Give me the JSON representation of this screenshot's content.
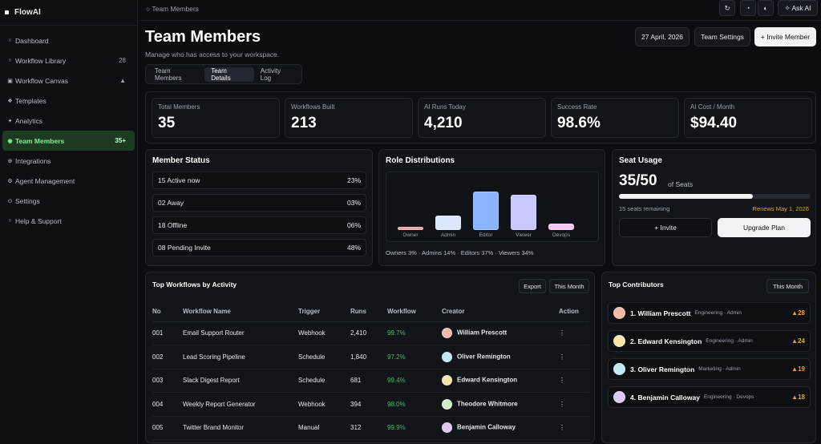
{
  "app": {
    "name": "FlowAI"
  },
  "sidebar": {
    "items": [
      {
        "icon": "circle-icon",
        "glyph": "○",
        "label": "Dashboard",
        "count": ""
      },
      {
        "icon": "circle-icon",
        "glyph": "○",
        "label": "Workflow Library",
        "count": "28"
      },
      {
        "icon": "canvas-icon",
        "glyph": "▣",
        "label": "Workflow Canvas",
        "count": "▲"
      },
      {
        "icon": "templates-icon",
        "glyph": "❖",
        "label": "Templates",
        "count": ""
      },
      {
        "icon": "analytics-icon",
        "glyph": "✦",
        "label": "Analytics",
        "count": ""
      },
      {
        "icon": "team-icon",
        "glyph": "◉",
        "label": "Team Members",
        "count": "35+"
      },
      {
        "icon": "integrations-icon",
        "glyph": "⊕",
        "label": "Integrations",
        "count": ""
      },
      {
        "icon": "agent-icon",
        "glyph": "⚙",
        "label": "Agent Management",
        "count": ""
      },
      {
        "icon": "settings-icon",
        "glyph": "⊙",
        "label": "Settings",
        "count": ""
      },
      {
        "icon": "help-icon",
        "glyph": "○",
        "label": "Help & Support",
        "count": ""
      }
    ]
  },
  "topbar": {
    "breadcrumb": "○ Team Members",
    "refresh_glyph": "↻",
    "moon_glyph": "◔",
    "contrast_glyph": "◐",
    "ask_ai": "✧ Ask AI"
  },
  "header": {
    "title": "Team Members",
    "subtitle": "Manage who has access to your workspace.",
    "date": "27 April, 2026",
    "settings_label": "Team Settings",
    "invite_label": "+ Invite Member"
  },
  "tabs": [
    "Team Members",
    "Team Details",
    "Activity Log"
  ],
  "stats": [
    {
      "label": "Total Members",
      "value": "35"
    },
    {
      "label": "Workflows Built",
      "value": "213"
    },
    {
      "label": "AI Runs Today",
      "value": "4,210"
    },
    {
      "label": "Success Rate",
      "value": "98.6%"
    },
    {
      "label": "AI Cost / Month",
      "value": "$94.40"
    }
  ],
  "member_status": {
    "title": "Member Status",
    "rows": [
      {
        "label": "15 Active now",
        "pct": "23%"
      },
      {
        "label": "02 Away",
        "pct": "03%"
      },
      {
        "label": "18 Offline",
        "pct": "06%"
      },
      {
        "label": "08 Pending Invite",
        "pct": "48%"
      }
    ]
  },
  "roles": {
    "title": "Role Distributions",
    "summary": "Owners 3% · Admins 14% · Editors 37% · Viewers 34%",
    "chart_data": {
      "type": "bar",
      "categories": [
        "Owner",
        "Admin",
        "Editor",
        "Viewer",
        "Devops"
      ],
      "values": [
        3,
        14,
        37,
        34,
        6
      ],
      "colors": [
        "#e9a6a6",
        "#dbe6ff",
        "#8ab4ff",
        "#c7c6ff",
        "#f5c8ef"
      ]
    }
  },
  "seats": {
    "title": "Seat Usage",
    "value": "35/50",
    "of_label": "of Seats",
    "used_fraction": 0.7,
    "remaining": "15 seats remaining",
    "renews": "Renews May 1, 2026",
    "invite_label": "+ Invite",
    "upgrade_label": "Upgrade Plan"
  },
  "workflows": {
    "title": "Top Workflows by Activity",
    "export_label": "Export",
    "period_label": "This Month",
    "columns": [
      "No",
      "Workflow Name",
      "Trigger",
      "Runs",
      "Workflow",
      "Creator",
      "Action"
    ],
    "rows": [
      {
        "no": "001",
        "name": "Email Support Router",
        "trigger": "Webhook",
        "runs": "2,410",
        "rate": "99.7%",
        "creator": "William Prescott",
        "color": "#f0b9a8",
        "action": "⋮"
      },
      {
        "no": "002",
        "name": "Lead Scoring Pipeline",
        "trigger": "Schedule",
        "runs": "1,840",
        "rate": "97.2%",
        "creator": "Oliver Remington",
        "color": "#bfeaf2",
        "action": "⋮"
      },
      {
        "no": "003",
        "name": "Slack Digest Report",
        "trigger": "Schedule",
        "runs": "681",
        "rate": "99.4%",
        "creator": "Edward Kensington",
        "color": "#f6e4a8",
        "action": "⋮"
      },
      {
        "no": "004",
        "name": "Weekly Report Generator",
        "trigger": "Webhook",
        "runs": "394",
        "rate": "98.0%",
        "creator": "Theodore Whitmore",
        "color": "#cfeec4",
        "action": "⋮"
      },
      {
        "no": "005",
        "name": "Twitter Brand Monitor",
        "trigger": "Manual",
        "runs": "312",
        "rate": "99.9%",
        "creator": "Benjamin Calloway",
        "color": "#dcc8f2",
        "action": "⋮"
      }
    ]
  },
  "contributors": {
    "title": "Top Contributors",
    "period_label": "This Month",
    "items": [
      {
        "name": "1. William Prescott",
        "meta": "Engineering · Admin",
        "score": "▲28",
        "color": "#f0b9a8"
      },
      {
        "name": "2. Edward Kensington",
        "meta": "Engineering · Admin",
        "score": "▲24",
        "color": "#f6e4a8"
      },
      {
        "name": "3. Oliver Remington",
        "meta": "Marketing · Admin",
        "score": "▲19",
        "color": "#bfeaf2"
      },
      {
        "name": "4. Benjamin Calloway",
        "meta": "Engineering · Devops",
        "score": "▲18",
        "color": "#dcc8f2"
      }
    ]
  }
}
